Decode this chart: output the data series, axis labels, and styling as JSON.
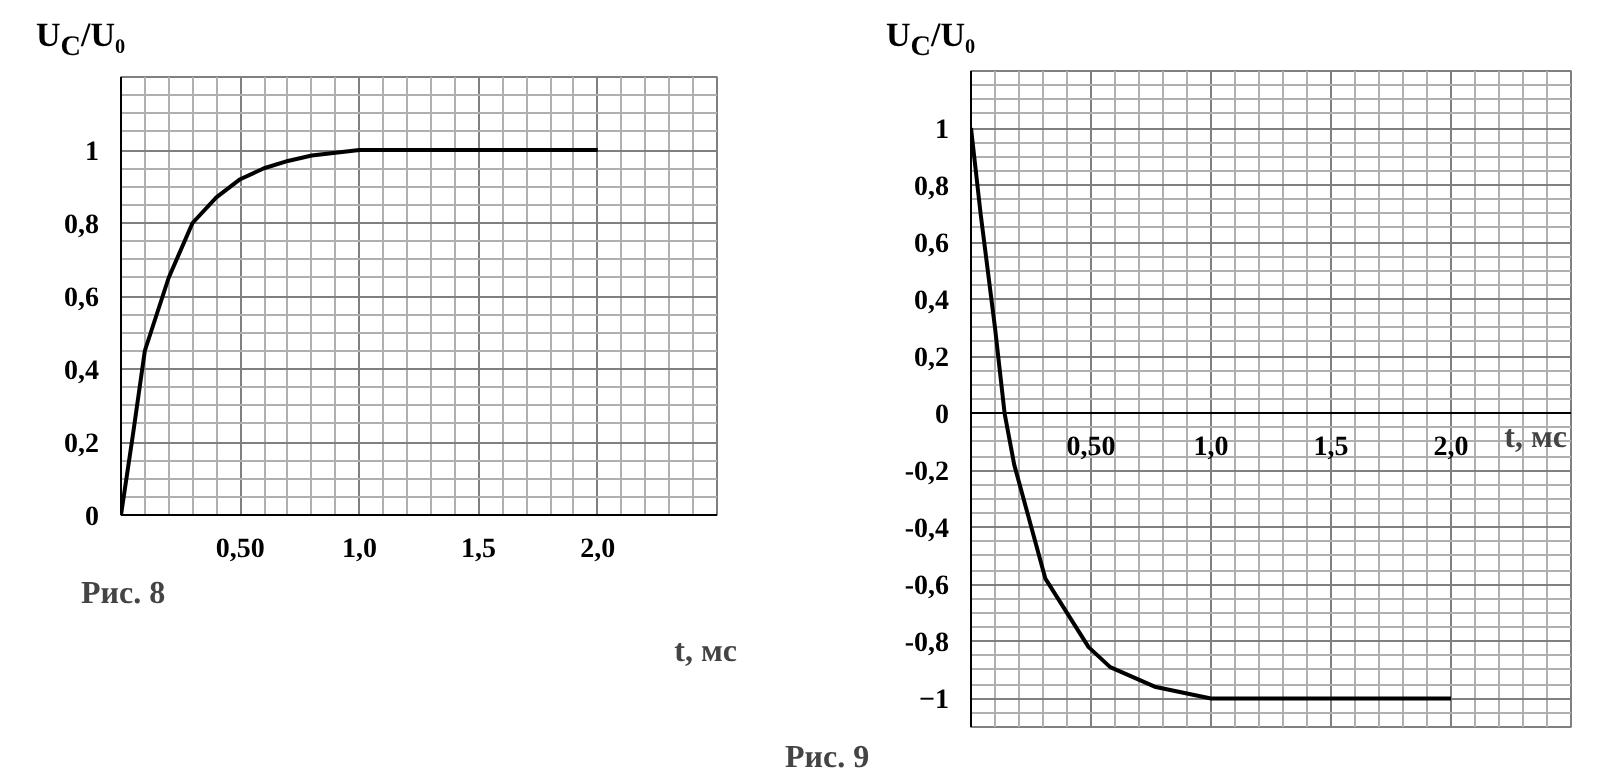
{
  "chart_data": [
    {
      "type": "line",
      "xlabel": "t, мс",
      "ylabel": "U$_{C}$/U₀",
      "annotations": [
        "Рис. 8"
      ],
      "x": [
        0,
        0.05,
        0.1,
        0.15,
        0.2,
        0.3,
        0.4,
        0.5,
        0.6,
        0.7,
        0.8,
        1.0,
        2.0
      ],
      "series": [
        {
          "color": "#000000",
          "values": [
            0,
            0.22,
            0.45,
            0.55,
            0.65,
            0.8,
            0.87,
            0.92,
            0.95,
            0.97,
            0.985,
            1.0,
            1.0
          ]
        }
      ],
      "xlim": [
        0,
        2.5
      ],
      "ylim": [
        0,
        1.2
      ],
      "xticks": [
        {
          "value": 0.5,
          "label": "0,50"
        },
        {
          "value": 1.0,
          "label": "1,0"
        },
        {
          "value": 1.5,
          "label": "1,5"
        },
        {
          "value": 2.0,
          "label": "2,0"
        }
      ],
      "yticks": [
        0,
        {
          "value": 0.2,
          "label": "0,2"
        },
        {
          "value": 0.4,
          "label": "0,4"
        },
        {
          "value": 0.6,
          "label": "0,6"
        },
        {
          "value": 0.8,
          "label": "0,8"
        },
        1
      ],
      "grid": true
    },
    {
      "type": "line",
      "xlabel": "t, мс",
      "ylabel": "U$_{C}$/U₀",
      "annotations": [
        "Рис. 9"
      ],
      "x": [
        0,
        0.04,
        0.1,
        0.14,
        0.18,
        0.31,
        0.49,
        0.58,
        0.77,
        1.0,
        2.0
      ],
      "series": [
        {
          "color": "#000000",
          "values": [
            1,
            0.7,
            0.3,
            0,
            -0.18,
            -0.58,
            -0.82,
            -0.89,
            -0.96,
            -1,
            -1
          ]
        }
      ],
      "xlim": [
        0,
        2.5
      ],
      "ylim": [
        -1.1,
        1.2
      ],
      "xticks": [
        {
          "value": 0.5,
          "label": "0,50"
        },
        {
          "value": 1.0,
          "label": "1,0"
        },
        {
          "value": 1.5,
          "label": "1,5"
        },
        {
          "value": 2.0,
          "label": "2,0"
        }
      ],
      "yticks": [
        -1,
        {
          "value": -0.8,
          "label": "-0,8"
        },
        {
          "value": -0.6,
          "label": "-0,6"
        },
        {
          "value": -0.4,
          "label": "-0,4"
        },
        {
          "value": -0.2,
          "label": "-0,2"
        },
        0,
        {
          "value": 0.2,
          "label": "0,2"
        },
        {
          "value": 0.4,
          "label": "0,4"
        },
        {
          "value": 0.6,
          "label": "0,6"
        },
        {
          "value": 0.8,
          "label": "0,8"
        },
        1
      ],
      "grid": true
    }
  ]
}
